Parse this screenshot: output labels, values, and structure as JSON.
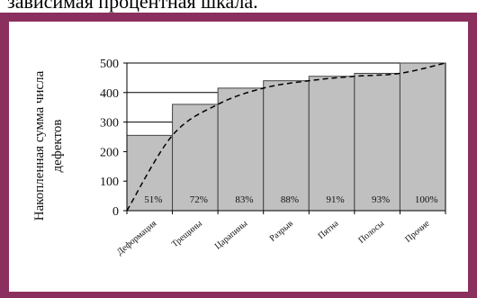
{
  "page": {
    "top_text": "зависимая процентная шкала."
  },
  "colors": {
    "frame": "#8a2f5e",
    "bar_fill": "#c0c0c0",
    "bar_stroke": "#444444",
    "curve": "#000000"
  },
  "chart_data": {
    "type": "bar",
    "title": "",
    "xlabel": "",
    "ylabel": "Накопленная сумма числа дефектов",
    "ylim": [
      0,
      500
    ],
    "yticks": [
      0,
      100,
      200,
      300,
      400,
      500
    ],
    "categories": [
      "Деформация",
      "Трещины",
      "Царапины",
      "Разрыв",
      "Пятна",
      "Полосы",
      "Прочие"
    ],
    "values": [
      255,
      360,
      415,
      440,
      455,
      465,
      500
    ],
    "percent_labels": [
      "51%",
      "72%",
      "83%",
      "88%",
      "91%",
      "93%",
      "100%"
    ],
    "curve": {
      "style": "dashed",
      "points": [
        [
          0,
          0
        ],
        [
          1,
          255
        ],
        [
          2,
          360
        ],
        [
          3,
          415
        ],
        [
          4,
          440
        ],
        [
          5,
          455
        ],
        [
          6,
          465
        ],
        [
          7,
          500
        ]
      ]
    },
    "grid": true,
    "legend": "none"
  }
}
